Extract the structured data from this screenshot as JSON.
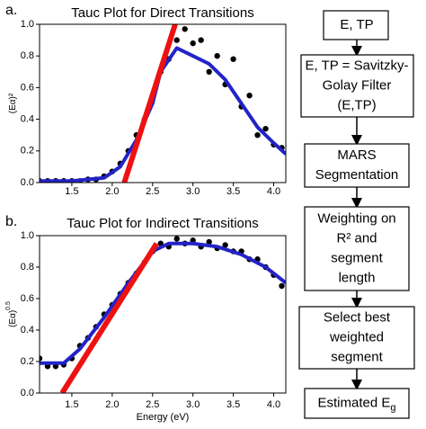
{
  "chart_data": [
    {
      "type": "scatter",
      "panel": "a.",
      "title": "Tauc Plot for Direct Transitions",
      "ylabel": "(Eα)²",
      "xlim": [
        1.1,
        4.15
      ],
      "ylim": [
        0,
        1
      ],
      "xticks": [
        1.5,
        {
          "value": 2,
          "label": "2.0"
        },
        2.5,
        {
          "value": 3,
          "label": "3.0"
        },
        3.5,
        {
          "value": 4,
          "label": "4.0"
        }
      ],
      "yticks": [
        {
          "value": 0,
          "label": "0.0"
        },
        0.2,
        0.4,
        0.6,
        0.8,
        {
          "value": 1,
          "label": "1.0"
        }
      ],
      "series": [
        {
          "kind": "points",
          "color": "#000000",
          "x": [
            1.1,
            1.2,
            1.3,
            1.4,
            1.5,
            1.6,
            1.7,
            1.8,
            1.9,
            2.0,
            2.1,
            2.2,
            2.3,
            2.4,
            2.5,
            2.6,
            2.7,
            2.8,
            2.9,
            3.0,
            3.1,
            3.2,
            3.3,
            3.4,
            3.5,
            3.6,
            3.7,
            3.8,
            3.9,
            4.0,
            4.1
          ],
          "values": [
            0.01,
            0.01,
            0.01,
            0.01,
            0.01,
            0.01,
            0.02,
            0.02,
            0.04,
            0.07,
            0.12,
            0.2,
            0.3,
            0.4,
            0.53,
            0.7,
            0.78,
            0.9,
            0.97,
            0.88,
            0.9,
            0.7,
            0.8,
            0.62,
            0.78,
            0.48,
            0.55,
            0.3,
            0.34,
            0.24,
            0.22
          ]
        },
        {
          "kind": "line",
          "color": "#2323c8",
          "width": 4,
          "x": [
            1.1,
            1.5,
            1.9,
            2.1,
            2.3,
            2.5,
            2.6,
            2.8,
            3.0,
            3.2,
            3.4,
            3.6,
            3.8,
            4.0,
            4.15
          ],
          "values": [
            0.01,
            0.01,
            0.03,
            0.1,
            0.27,
            0.5,
            0.7,
            0.85,
            0.8,
            0.75,
            0.65,
            0.5,
            0.35,
            0.25,
            0.18
          ]
        },
        {
          "kind": "line",
          "color": "#ee1111",
          "width": 6,
          "x": [
            2.15,
            2.78
          ],
          "values": [
            0,
            1
          ]
        }
      ]
    },
    {
      "type": "scatter",
      "panel": "b.",
      "title": "Tauc Plot for Indirect Transitions",
      "ylabel": "(Eα)",
      "ylabel_superscript": "0.5",
      "xlabel": "Energy (eV)",
      "xlim": [
        1.1,
        4.15
      ],
      "ylim": [
        0,
        1
      ],
      "xticks": [
        1.5,
        {
          "value": 2,
          "label": "2.0"
        },
        2.5,
        {
          "value": 3,
          "label": "3.0"
        },
        3.5,
        {
          "value": 4,
          "label": "4.0"
        }
      ],
      "yticks": [
        {
          "value": 0,
          "label": "0.0"
        },
        0.2,
        0.4,
        0.6,
        0.8,
        {
          "value": 1,
          "label": "1.0"
        }
      ],
      "series": [
        {
          "kind": "points",
          "color": "#000000",
          "x": [
            1.1,
            1.2,
            1.3,
            1.4,
            1.5,
            1.6,
            1.7,
            1.8,
            1.9,
            2.0,
            2.1,
            2.2,
            2.3,
            2.4,
            2.5,
            2.6,
            2.7,
            2.8,
            2.9,
            3.0,
            3.1,
            3.2,
            3.3,
            3.4,
            3.5,
            3.6,
            3.7,
            3.8,
            3.9,
            4.0,
            4.1
          ],
          "values": [
            0.22,
            0.17,
            0.17,
            0.18,
            0.22,
            0.3,
            0.35,
            0.42,
            0.5,
            0.56,
            0.63,
            0.7,
            0.76,
            0.83,
            0.9,
            0.95,
            0.93,
            0.98,
            0.95,
            0.97,
            0.93,
            0.96,
            0.92,
            0.94,
            0.9,
            0.9,
            0.85,
            0.85,
            0.8,
            0.75,
            0.68
          ]
        },
        {
          "kind": "line",
          "color": "#2323c8",
          "width": 4,
          "x": [
            1.1,
            1.4,
            1.6,
            1.9,
            2.2,
            2.5,
            2.7,
            3.0,
            3.3,
            3.6,
            3.9,
            4.15
          ],
          "values": [
            0.19,
            0.19,
            0.28,
            0.48,
            0.7,
            0.9,
            0.95,
            0.95,
            0.93,
            0.88,
            0.8,
            0.7
          ]
        },
        {
          "kind": "line",
          "color": "#ee1111",
          "width": 6,
          "x": [
            1.38,
            2.55
          ],
          "values": [
            0,
            0.95
          ]
        }
      ]
    }
  ],
  "flowchart": {
    "nodes": [
      {
        "lines": [
          "E, TP"
        ]
      },
      {
        "lines": [
          "E, TP = Savitzky-",
          "Golay Filter",
          "(E,TP)"
        ]
      },
      {
        "lines": [
          "MARS",
          "Segmentation"
        ]
      },
      {
        "lines": [
          "Weighting on",
          "R² and",
          "segment",
          "length"
        ]
      },
      {
        "lines": [
          "Select best",
          "weighted",
          "segment"
        ]
      },
      {
        "lines": [
          "Estimated E"
        ],
        "subscript": "g"
      }
    ]
  }
}
